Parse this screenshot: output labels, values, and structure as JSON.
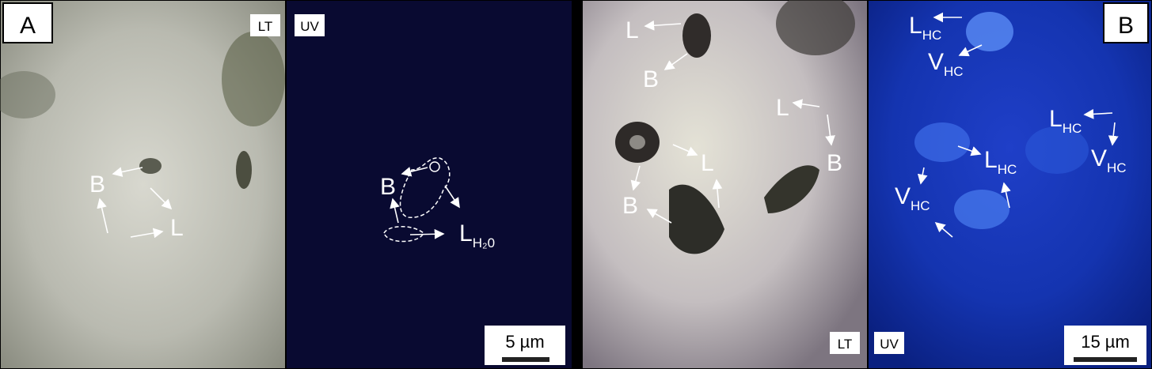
{
  "figure": {
    "panels": [
      {
        "label": "A",
        "mode": "LT",
        "annotations": [
          {
            "text": "B"
          },
          {
            "text": "L"
          }
        ]
      },
      {
        "mode": "UV",
        "annotations": [
          {
            "text": "B"
          },
          {
            "text": "L",
            "sub": "H₂0"
          }
        ],
        "scale_bar": "5 µm"
      },
      {
        "mode": "LT",
        "annotations": [
          {
            "text": "L"
          },
          {
            "text": "B"
          },
          {
            "text": "L"
          },
          {
            "text": "B"
          },
          {
            "text": "L"
          },
          {
            "text": "B"
          }
        ]
      },
      {
        "label": "B",
        "mode": "UV",
        "annotations": [
          {
            "text": "L",
            "sub": "HC"
          },
          {
            "text": "V",
            "sub": "HC"
          },
          {
            "text": "L",
            "sub": "HC"
          },
          {
            "text": "V",
            "sub": "HC"
          },
          {
            "text": "V",
            "sub": "HC"
          },
          {
            "text": "L",
            "sub": "HC"
          }
        ],
        "scale_bar": "15 µm"
      }
    ]
  }
}
